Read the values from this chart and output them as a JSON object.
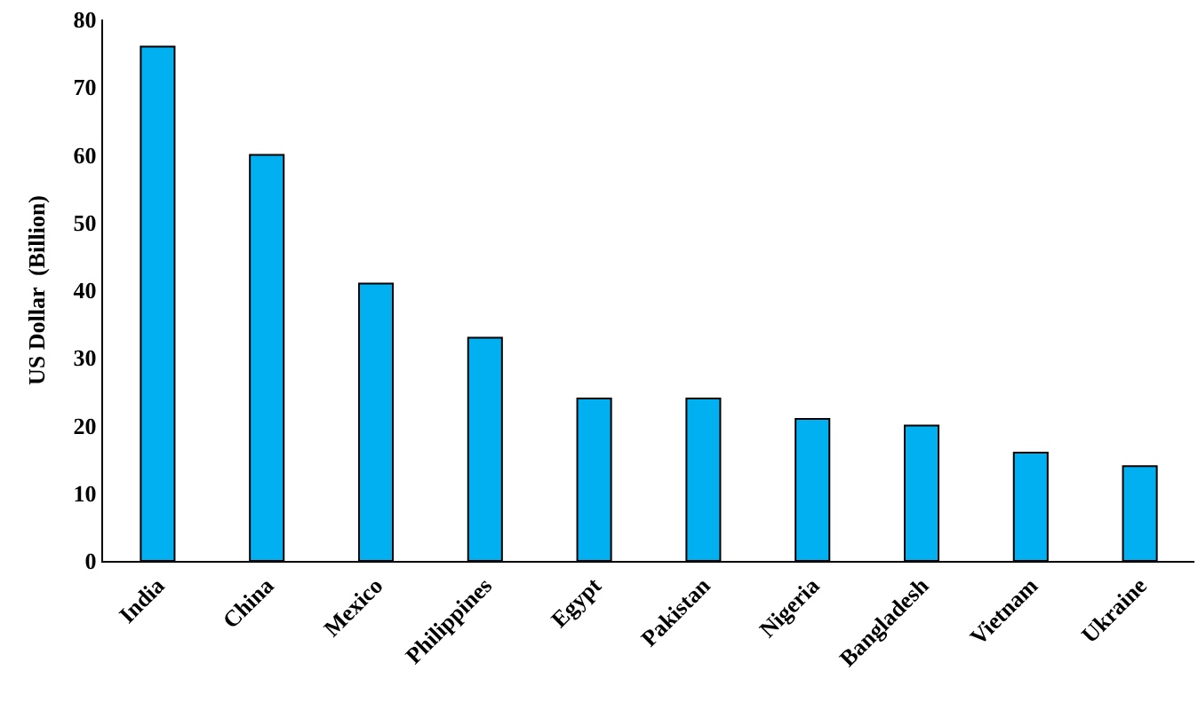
{
  "chart_data": {
    "type": "bar",
    "ylabel": "US Dollar  (Billion)",
    "categories": [
      "India",
      "China",
      "Mexico",
      "Philippines",
      "Egypt",
      "Pakistan",
      "Nigeria",
      "Bangladesh",
      "Vietnam",
      "Ukraine"
    ],
    "values": [
      76,
      60,
      41,
      33,
      24,
      24,
      21,
      20,
      16,
      14
    ],
    "color": "#00b0f0",
    "ylim": [
      0,
      80
    ],
    "yticks": [
      0,
      10,
      20,
      30,
      40,
      50,
      60,
      70,
      80
    ]
  }
}
